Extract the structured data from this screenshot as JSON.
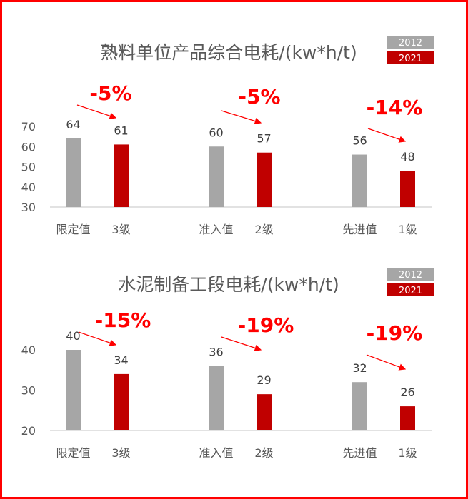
{
  "colors": {
    "2012": "#a6a6a6",
    "2021": "#c00000",
    "change": "#ff0000",
    "border": "#ff0000"
  },
  "chart_data": [
    {
      "type": "bar",
      "title": "熟料单位产品综合电耗/(kw*h/t)",
      "legend": [
        "2012",
        "2021"
      ],
      "legend_position": "top-right",
      "categories": [
        "限定值",
        "3级",
        "准入值",
        "2级",
        "先进值",
        "1级"
      ],
      "values": [
        64,
        61,
        60,
        57,
        56,
        48
      ],
      "series_of_bar": [
        "2012",
        "2021",
        "2012",
        "2021",
        "2012",
        "2021"
      ],
      "yticks": [
        30,
        40,
        50,
        60,
        70
      ],
      "ylim": [
        30,
        72
      ],
      "grid": false,
      "changes": [
        "-5%",
        "-5%",
        "-14%"
      ]
    },
    {
      "type": "bar",
      "title": "水泥制备工段电耗/(kw*h/t)",
      "legend": [
        "2012",
        "2021"
      ],
      "legend_position": "top-right",
      "categories": [
        "限定值",
        "3级",
        "准入值",
        "2级",
        "先进值",
        "1级"
      ],
      "values": [
        40,
        34,
        36,
        29,
        32,
        26
      ],
      "series_of_bar": [
        "2012",
        "2021",
        "2012",
        "2021",
        "2012",
        "2021"
      ],
      "yticks": [
        20,
        30,
        40
      ],
      "ylim": [
        20,
        44
      ],
      "grid": false,
      "changes": [
        "-15%",
        "-19%",
        "-19%"
      ]
    }
  ]
}
